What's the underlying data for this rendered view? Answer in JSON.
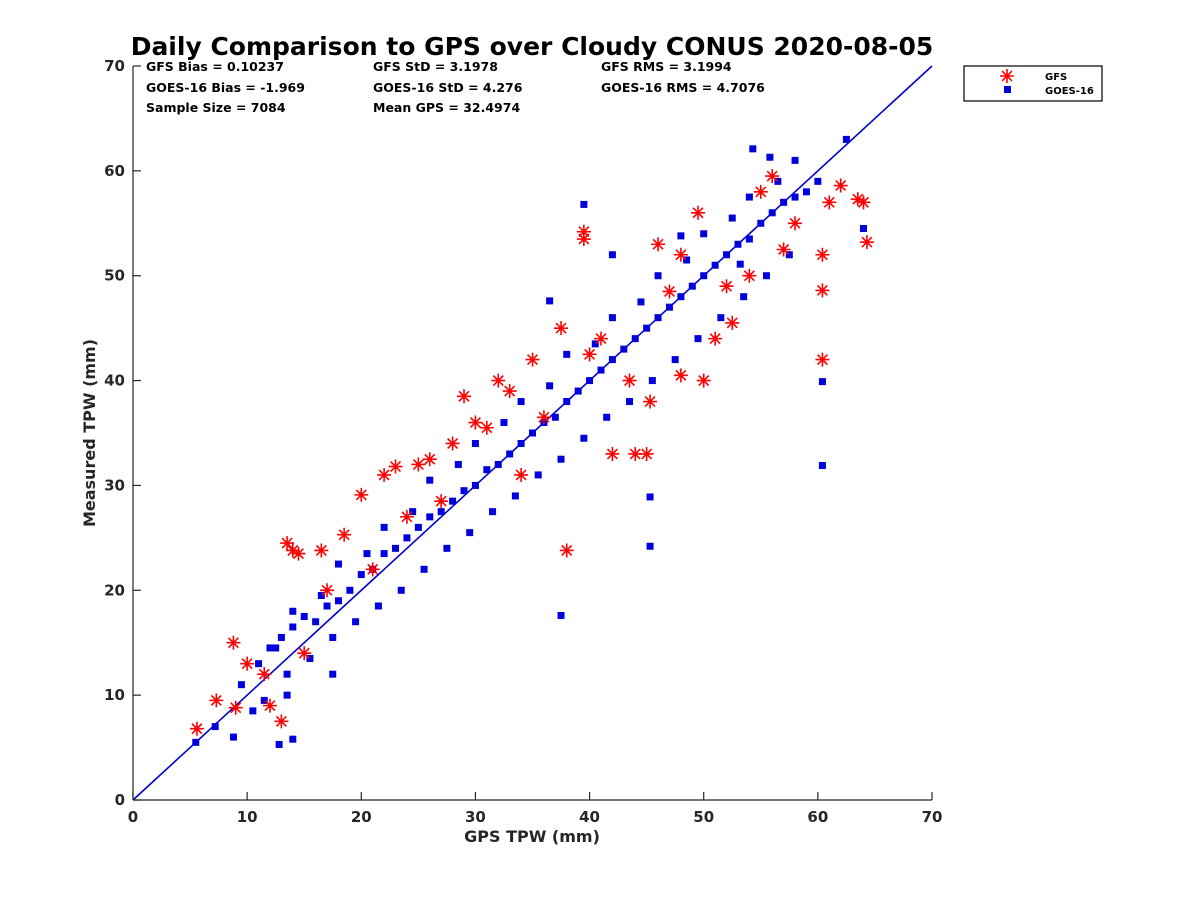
{
  "chart_data": {
    "type": "scatter",
    "title": "Daily Comparison to GPS over Cloudy CONUS 2020-08-05",
    "xlabel": "GPS TPW (mm)",
    "ylabel": "Measured TPW (mm)",
    "xlim": [
      0,
      70
    ],
    "ylim": [
      0,
      70
    ],
    "xticks": [
      "0",
      "10",
      "20",
      "30",
      "40",
      "50",
      "60",
      "70"
    ],
    "yticks": [
      "0",
      "10",
      "20",
      "30",
      "40",
      "50",
      "60",
      "70"
    ],
    "grid": false,
    "legend_position": "outside-top-right",
    "reference_line": {
      "name": "1:1 line",
      "x": [
        0,
        70
      ],
      "y": [
        0,
        70
      ],
      "color": "#0000cc"
    },
    "stats": [
      [
        "GFS Bias = 0.10237",
        "GFS StD = 3.1978",
        "GFS RMS = 3.1994"
      ],
      [
        "GOES-16 Bias = -1.969",
        "GOES-16 StD = 4.276",
        "GOES-16 RMS = 4.7076"
      ],
      [
        "Sample Size = 7084",
        "Mean GPS = 32.4974",
        ""
      ]
    ],
    "series": [
      {
        "name": "GOES-16",
        "marker": "square",
        "color": "#0000dd",
        "x": [
          5.5,
          8.8,
          12.8,
          14.0,
          7.2,
          10.5,
          13.5,
          17.5,
          9.5,
          11.0,
          12.0,
          13.0,
          14.0,
          15.0,
          16.0,
          17.0,
          18.0,
          19.0,
          20.0,
          21.0,
          22.0,
          23.0,
          24.0,
          25.0,
          26.0,
          27.0,
          28.0,
          29.0,
          30.0,
          31.0,
          32.0,
          33.0,
          34.0,
          35.0,
          36.0,
          37.0,
          38.0,
          39.0,
          40.0,
          41.0,
          42.0,
          43.0,
          44.0,
          45.0,
          46.0,
          47.0,
          48.0,
          49.0,
          50.0,
          51.0,
          52.0,
          53.0,
          54.0,
          55.0,
          56.0,
          57.0,
          58.0,
          59.0,
          60.0,
          11.5,
          13.5,
          15.5,
          17.5,
          19.5,
          21.5,
          23.5,
          25.5,
          27.5,
          29.5,
          31.5,
          33.5,
          35.5,
          37.5,
          39.5,
          41.5,
          43.5,
          45.5,
          47.5,
          49.5,
          51.5,
          53.5,
          55.5,
          57.5,
          12.5,
          16.5,
          20.5,
          24.5,
          28.5,
          32.5,
          36.5,
          40.5,
          44.5,
          48.5,
          52.5,
          56.5,
          14.0,
          18.0,
          22.0,
          26.0,
          30.0,
          34.0,
          38.0,
          42.0,
          46.0,
          50.0,
          54.0,
          58.0,
          37.5,
          45.3,
          45.3,
          60.4,
          60.4,
          62.5,
          64.0,
          48.0,
          55.8,
          54.3,
          36.5,
          42.0,
          39.5,
          53.2
        ],
        "y": [
          5.5,
          6.0,
          5.3,
          5.8,
          7.0,
          8.5,
          10.0,
          12.0,
          11.0,
          13.0,
          14.5,
          15.5,
          16.5,
          17.5,
          17.0,
          18.5,
          19.0,
          20.0,
          21.5,
          22.0,
          23.5,
          24.0,
          25.0,
          26.0,
          27.0,
          27.5,
          28.5,
          29.5,
          30.0,
          31.5,
          32.0,
          33.0,
          34.0,
          35.0,
          36.0,
          36.5,
          38.0,
          39.0,
          40.0,
          41.0,
          42.0,
          43.0,
          44.0,
          45.0,
          46.0,
          47.0,
          48.0,
          49.0,
          50.0,
          51.0,
          52.0,
          53.0,
          53.5,
          55.0,
          56.0,
          57.0,
          57.5,
          58.0,
          59.0,
          9.5,
          12.0,
          13.5,
          15.5,
          17.0,
          18.5,
          20.0,
          22.0,
          24.0,
          25.5,
          27.5,
          29.0,
          31.0,
          32.5,
          34.5,
          36.5,
          38.0,
          40.0,
          42.0,
          44.0,
          46.0,
          48.0,
          50.0,
          52.0,
          14.5,
          19.5,
          23.5,
          27.5,
          32.0,
          36.0,
          39.5,
          43.5,
          47.5,
          51.5,
          55.5,
          59.0,
          18.0,
          22.5,
          26.0,
          30.5,
          34.0,
          38.0,
          42.5,
          46.0,
          50.0,
          54.0,
          57.5,
          61.0,
          17.6,
          24.2,
          28.9,
          31.9,
          39.9,
          63.0,
          54.5,
          53.8,
          61.3,
          62.1,
          47.6,
          52.0,
          56.8,
          51.1
        ]
      },
      {
        "name": "GFS",
        "marker": "asterisk",
        "color": "#ff0000",
        "x": [
          5.6,
          7.3,
          8.8,
          13.0,
          13.5,
          14.0,
          14.5,
          16.5,
          18.5,
          20.0,
          22.0,
          23.0,
          25.0,
          26.0,
          28.0,
          29.0,
          30.0,
          32.0,
          33.0,
          35.0,
          37.5,
          38.0,
          39.5,
          39.5,
          41.0,
          42.0,
          43.5,
          45.0,
          45.3,
          46.0,
          48.0,
          49.5,
          51.0,
          52.5,
          55.0,
          58.0,
          60.4,
          60.4,
          60.4,
          61.0,
          62.0,
          63.5,
          64.0,
          64.3,
          56.0,
          54.0,
          50.0,
          48.0,
          44.0,
          10.0,
          11.5,
          12.0,
          15.0,
          17.0,
          21.0,
          24.0,
          27.0,
          31.0,
          34.0,
          36.0,
          40.0,
          47.0,
          52.0,
          57.0,
          9.0
        ],
        "y": [
          6.8,
          9.5,
          15.0,
          7.5,
          24.5,
          23.8,
          23.5,
          23.8,
          25.3,
          29.1,
          31.0,
          31.8,
          32.0,
          32.5,
          34.0,
          38.5,
          36.0,
          40.0,
          39.0,
          42.0,
          45.0,
          23.8,
          54.2,
          53.5,
          44.0,
          33.0,
          40.0,
          33.0,
          38.0,
          53.0,
          52.0,
          56.0,
          44.0,
          45.5,
          58.0,
          55.0,
          42.0,
          48.6,
          52.0,
          57.0,
          58.6,
          57.3,
          57.0,
          53.2,
          59.5,
          50.0,
          40.0,
          40.5,
          33.0,
          13.0,
          12.0,
          9.0,
          14.0,
          20.0,
          22.0,
          27.0,
          28.5,
          35.5,
          31.0,
          36.5,
          42.5,
          48.5,
          49.0,
          52.5,
          8.8
        ]
      }
    ]
  }
}
